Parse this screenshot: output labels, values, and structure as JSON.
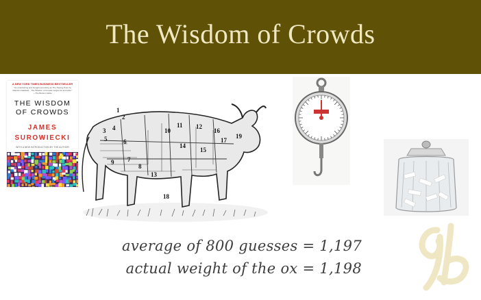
{
  "slide": {
    "title": "The Wisdom of Crowds",
    "colors": {
      "title_bar": "#5f5206",
      "title_text": "#efe8c2",
      "body_text": "#3d3d3d",
      "logo": "#efe7c4"
    }
  },
  "book": {
    "banner": "A NEW YORK TIMES BUSINESS BESTSELLER",
    "blurb": "\"As entertaining and thought-provoking as The Tipping Point by Malcolm Gladwell... The Wisdom of Crowds ranges far and wide.\" —The Boston Globe",
    "title_line1": "THE WISDOM",
    "title_line2": "OF CROWDS",
    "author_line1": "JAMES",
    "author_line2": "SUROWIECKI",
    "intro_note": "WITH A NEW INTRODUCTION BY THE AUTHOR"
  },
  "ox": {
    "cut_numbers": [
      "1",
      "2",
      "3",
      "4",
      "5",
      "6",
      "7",
      "8",
      "9",
      "10",
      "11",
      "12",
      "13",
      "14",
      "15",
      "16",
      "17",
      "18",
      "19"
    ]
  },
  "results": {
    "average_line": "average of 800 guesses = 1,197",
    "actual_line": "actual weight of the ox = 1,198"
  },
  "icons": {
    "ox": "ox-illustration-icon",
    "scale": "hanging-scale-icon",
    "jar": "glass-jar-icon",
    "logo": "gb-monogram-logo"
  }
}
